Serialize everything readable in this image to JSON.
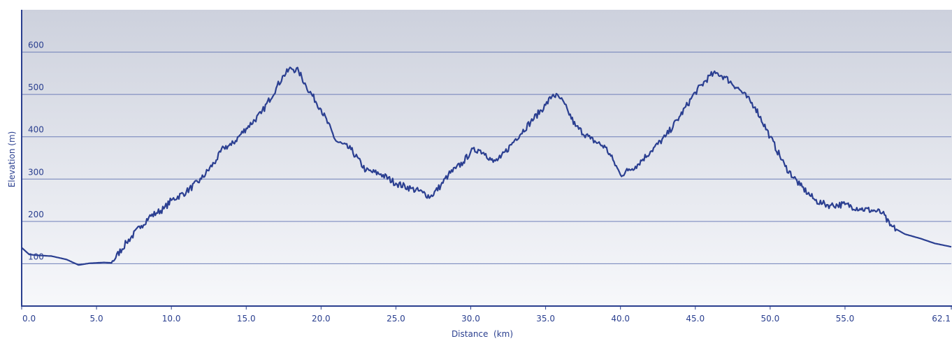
{
  "chart_data": {
    "type": "line",
    "title": "",
    "xlabel": "Distance  (km)",
    "ylabel": "Elevation (m)",
    "xlim": [
      0,
      62.1
    ],
    "ylim": [
      0,
      700
    ],
    "grid": true,
    "x_ticks": [
      "0.0",
      "5.0",
      "10.0",
      "15.0",
      "20.0",
      "25.0",
      "30.0",
      "35.0",
      "40.0",
      "45.0",
      "50.0",
      "55.0",
      "62.1"
    ],
    "x_tick_values": [
      0,
      5,
      10,
      15,
      20,
      25,
      30,
      35,
      40,
      45,
      50,
      55,
      62.1
    ],
    "y_ticks": [
      "100",
      "200",
      "300",
      "400",
      "500",
      "600"
    ],
    "y_tick_values": [
      100,
      200,
      300,
      400,
      500,
      600
    ],
    "series": [
      {
        "x": [
          0,
          0.5,
          1.0,
          2.0,
          3.0,
          3.8,
          4.5,
          5.5,
          6.0,
          7.0,
          8.0,
          8.5,
          9.0,
          9.5,
          10.0,
          11.0,
          12.0,
          13.0,
          13.5,
          14.0,
          15.0,
          16.0,
          17.0,
          17.5,
          18.0,
          18.5,
          19.0,
          20.0,
          21.0,
          22.0,
          23.0,
          24.0,
          25.0,
          26.0,
          26.8,
          27.3,
          28.0,
          28.5,
          29.0,
          29.5,
          30.0,
          30.5,
          31.0,
          31.5,
          32.0,
          33.0,
          34.0,
          35.0,
          35.5,
          36.0,
          36.5,
          37.0,
          38.0,
          39.0,
          39.5,
          40.0,
          40.5,
          41.0,
          42.0,
          43.0,
          44.0,
          45.0,
          46.0,
          46.5,
          47.0,
          48.0,
          49.0,
          50.0,
          51.0,
          52.0,
          53.0,
          53.5,
          54.0,
          55.0,
          56.0,
          57.0,
          57.5,
          58.0,
          58.5,
          59.0,
          60.0,
          61.0,
          62.1
        ],
        "y": [
          138,
          122,
          120,
          118,
          110,
          97,
          101,
          103,
          102,
          150,
          190,
          210,
          220,
          230,
          250,
          270,
          300,
          345,
          375,
          380,
          420,
          455,
          515,
          545,
          562,
          555,
          520,
          465,
          390,
          370,
          320,
          312,
          290,
          278,
          268,
          258,
          285,
          310,
          325,
          340,
          365,
          370,
          360,
          340,
          350,
          395,
          435,
          475,
          500,
          490,
          460,
          425,
          395,
          375,
          345,
          310,
          320,
          330,
          365,
          400,
          450,
          505,
          545,
          550,
          540,
          510,
          470,
          400,
          330,
          285,
          250,
          242,
          238,
          240,
          230,
          225,
          220,
          190,
          180,
          170,
          160,
          148,
          140
        ]
      }
    ]
  }
}
